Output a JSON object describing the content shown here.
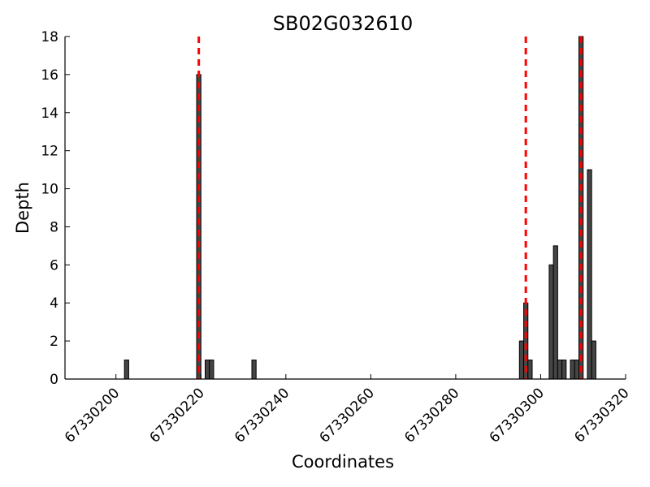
{
  "chart_data": {
    "type": "bar",
    "title": "SB02G032610",
    "xlabel": "Coordinates",
    "ylabel": "Depth",
    "xlim": [
      67330188,
      67330320
    ],
    "ylim": [
      0,
      18
    ],
    "x_ticks": [
      67330200,
      67330220,
      67330240,
      67330260,
      67330280,
      67330300,
      67330320
    ],
    "y_ticks": [
      0,
      2,
      4,
      6,
      8,
      10,
      12,
      14,
      16,
      18
    ],
    "bar_color": "#454545",
    "bar_edge_color": "#000000",
    "bar_width": 1,
    "bars": [
      {
        "x": 67330202,
        "y": 1
      },
      {
        "x": 67330219,
        "y": 16
      },
      {
        "x": 67330221,
        "y": 1
      },
      {
        "x": 67330222,
        "y": 1
      },
      {
        "x": 67330232,
        "y": 1
      },
      {
        "x": 67330295,
        "y": 2
      },
      {
        "x": 67330296,
        "y": 4
      },
      {
        "x": 67330297,
        "y": 1
      },
      {
        "x": 67330302,
        "y": 6
      },
      {
        "x": 67330303,
        "y": 7
      },
      {
        "x": 67330304,
        "y": 1
      },
      {
        "x": 67330305,
        "y": 1
      },
      {
        "x": 67330307,
        "y": 1
      },
      {
        "x": 67330308,
        "y": 1
      },
      {
        "x": 67330309,
        "y": 18
      },
      {
        "x": 67330311,
        "y": 11
      },
      {
        "x": 67330312,
        "y": 2
      }
    ],
    "vlines": [
      67330219.5,
      67330296.5,
      67330309.5
    ],
    "vline_color": "#ff0000",
    "vline_style": "dashed",
    "grid": false,
    "legend": "none"
  }
}
